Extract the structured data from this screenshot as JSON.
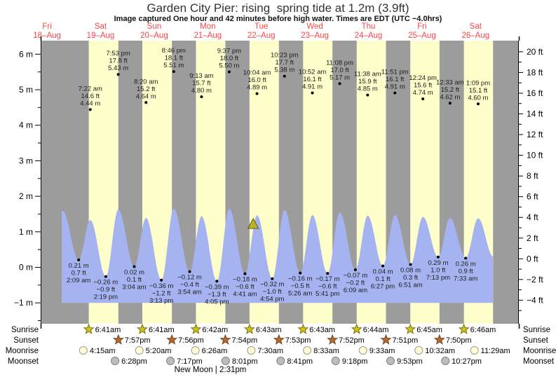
{
  "title": "Garden City Pier: rising  spring tide at 1.2m (3.9ft)",
  "subtitle": "Image captured One hour and 42 minutes before high water. Times are EDT (UTC −4.0hrs)",
  "colors": {
    "night_band": "#9c9c9c",
    "day_band": "#ffffcc",
    "tide_fill": "#a5b4f0",
    "day_label_red": "#f94646",
    "annotation_text": "#1c1c1c",
    "axis_text": "#000000",
    "sunrise_star_fill": "#cbc31f",
    "sunrise_star_stroke": "#7d7200",
    "sunset_star_fill": "#b26a33",
    "sunset_star_stroke": "#77431d",
    "moonrise_circle_fill": "#ffffd2",
    "moonrise_circle_stroke": "#999999",
    "moonset_circle_fill": "#bdbdbd",
    "moonset_circle_stroke": "#808080",
    "capture_triangle_fill": "#b9b32e",
    "capture_triangle_stroke": "#5f5c00"
  },
  "chart_data": {
    "type": "area",
    "title": "Garden City Pier: rising  spring tide at 1.2m (3.9ft)",
    "x_days": [
      {
        "weekday": "Fri",
        "date": "18–Aug"
      },
      {
        "weekday": "Sat",
        "date": "19–Aug"
      },
      {
        "weekday": "Sun",
        "date": "20–Aug"
      },
      {
        "weekday": "Mon",
        "date": "21–Aug"
      },
      {
        "weekday": "Tue",
        "date": "22–Aug"
      },
      {
        "weekday": "Wed",
        "date": "23–Aug"
      },
      {
        "weekday": "Thu",
        "date": "24–Aug"
      },
      {
        "weekday": "Fri",
        "date": "25–Aug"
      },
      {
        "weekday": "Sat",
        "date": "26–Aug"
      }
    ],
    "y_axis_left": {
      "unit": "m",
      "values": [
        6,
        5,
        4,
        3,
        2,
        1,
        0,
        -1
      ],
      "labels": [
        "6 m",
        "5 m",
        "4 m",
        "3 m",
        "2 m",
        "1 m",
        "0 m",
        "−1 m"
      ]
    },
    "y_axis_right": {
      "unit": "ft",
      "values": [
        20,
        18,
        16,
        14,
        12,
        10,
        8,
        6,
        4,
        2,
        0,
        -2,
        -4
      ],
      "labels": [
        "20 ft",
        "18 ft",
        "16 ft",
        "14 ft",
        "12 ft",
        "10 ft",
        "8 ft",
        "6 ft",
        "4 ft",
        "2 ft",
        "0 ft",
        "−2 ft",
        "−4 ft"
      ]
    },
    "high_tides": [
      {
        "day": 1,
        "hour": 7.3667,
        "time": "7:22 am",
        "ft": "14.6 ft",
        "m": "4.44 m",
        "value_m": 4.44
      },
      {
        "day": 1,
        "hour": 19.8833,
        "time": "7:53 pm",
        "ft": "17.8 ft",
        "m": "5.43 m",
        "value_m": 5.43
      },
      {
        "day": 2,
        "hour": 8.3333,
        "time": "8:20 am",
        "ft": "15.2 ft",
        "m": "4.64 m",
        "value_m": 4.64
      },
      {
        "day": 2,
        "hour": 20.7667,
        "time": "8:46 pm",
        "ft": "18.1 ft",
        "m": "5.51 m",
        "value_m": 5.51
      },
      {
        "day": 3,
        "hour": 9.2167,
        "time": "9:13 am",
        "ft": "15.7 ft",
        "m": "4.80 m",
        "value_m": 4.8
      },
      {
        "day": 3,
        "hour": 21.6167,
        "time": "9:37 pm",
        "ft": "18.0 ft",
        "m": "5.50 m",
        "value_m": 5.5
      },
      {
        "day": 4,
        "hour": 10.0667,
        "time": "10:04 am",
        "ft": "16.0 ft",
        "m": "4.89 m",
        "value_m": 4.89
      },
      {
        "day": 4,
        "hour": 22.3833,
        "time": "10:23 pm",
        "ft": "17.7 ft",
        "m": "5.38 m",
        "value_m": 5.38
      },
      {
        "day": 5,
        "hour": 10.8667,
        "time": "10:52 am",
        "ft": "16.1 ft",
        "m": "4.91 m",
        "value_m": 4.91
      },
      {
        "day": 5,
        "hour": 23.1333,
        "time": "11:08 pm",
        "ft": "17.0 ft",
        "m": "5.17 m",
        "value_m": 5.17
      },
      {
        "day": 6,
        "hour": 11.6333,
        "time": "11:38 am",
        "ft": "15.9 ft",
        "m": "4.85 m",
        "value_m": 4.85
      },
      {
        "day": 6,
        "hour": 23.85,
        "time": "11:51 pm",
        "ft": "16.1 ft",
        "m": "4.91 m",
        "value_m": 4.91
      },
      {
        "day": 7,
        "hour": 12.4,
        "time": "12:24 pm",
        "ft": "15.6 ft",
        "m": "4.74 m",
        "value_m": 4.74
      },
      {
        "day": 8,
        "hour": 0.55,
        "time": "12:33 am",
        "ft": "15.2 ft",
        "m": "4.62 m",
        "value_m": 4.62
      },
      {
        "day": 8,
        "hour": 13.15,
        "time": "1:09 pm",
        "ft": "15.1 ft",
        "m": "4.60 m",
        "value_m": 4.6
      }
    ],
    "low_tides": [
      {
        "day": 1,
        "hour": 2.15,
        "time": "2:09 am",
        "ft": "0.7 ft",
        "m": "0.21 m",
        "value_m": 0.21
      },
      {
        "day": 1,
        "hour": 14.3167,
        "time": "2:19 pm",
        "ft": "−0.9 ft",
        "m": "−0.26 m",
        "value_m": -0.26
      },
      {
        "day": 2,
        "hour": 3.0667,
        "time": "3:04 am",
        "ft": "0.1 ft",
        "m": "0.02 m",
        "value_m": 0.02
      },
      {
        "day": 2,
        "hour": 15.2167,
        "time": "3:13 pm",
        "ft": "−1.2 ft",
        "m": "−0.36 m",
        "value_m": -0.36
      },
      {
        "day": 3,
        "hour": 3.9,
        "time": "3:54 am",
        "ft": "−0.4 ft",
        "m": "−0.12 m",
        "value_m": -0.12
      },
      {
        "day": 3,
        "hour": 16.0833,
        "time": "4:05 pm",
        "ft": "−1.3 ft",
        "m": "−0.39 m",
        "value_m": -0.39
      },
      {
        "day": 4,
        "hour": 4.6833,
        "time": "4:41 am",
        "ft": "−0.6 ft",
        "m": "−0.18 m",
        "value_m": -0.18
      },
      {
        "day": 4,
        "hour": 16.9,
        "time": "4:54 pm",
        "ft": "−1.0 ft",
        "m": "−0.32 m",
        "value_m": -0.32
      },
      {
        "day": 5,
        "hour": 5.4333,
        "time": "5:26 am",
        "ft": "−0.5 ft",
        "m": "−0.16 m",
        "value_m": -0.16
      },
      {
        "day": 5,
        "hour": 17.6833,
        "time": "5:41 pm",
        "ft": "−0.6 ft",
        "m": "−0.17 m",
        "value_m": -0.17
      },
      {
        "day": 6,
        "hour": 6.15,
        "time": "6:09 am",
        "ft": "−0.2 ft",
        "m": "−0.07 m",
        "value_m": -0.07
      },
      {
        "day": 6,
        "hour": 18.45,
        "time": "6:27 pm",
        "ft": "0.1 ft",
        "m": "0.04 m",
        "value_m": 0.04
      },
      {
        "day": 7,
        "hour": 6.85,
        "time": "6:51 am",
        "ft": "0.3 ft",
        "m": "0.08 m",
        "value_m": 0.08
      },
      {
        "day": 7,
        "hour": 19.2167,
        "time": "7:13 pm",
        "ft": "1.0 ft",
        "m": "0.29 m",
        "value_m": 0.29
      },
      {
        "day": 8,
        "hour": 7.55,
        "time": "7:33 am",
        "ft": "0.9 ft",
        "m": "0.26 m",
        "value_m": 0.26
      }
    ],
    "capture_marker": {
      "day": 4,
      "hour": 8.3667
    },
    "curve": {
      "start": {
        "day": 0,
        "hour": 18.55
      },
      "end": {
        "day": 8,
        "hour": 19.75
      },
      "pre_peak": {
        "day": 0,
        "hour": 18.9167,
        "value_m": 5.3
      },
      "post_trough": {
        "day": 8,
        "hour": 19.9,
        "value_m": 0.3
      }
    },
    "last_band_end": {
      "day": 8,
      "hour": 19.83
    }
  },
  "astro": {
    "row_labels": [
      "Sunrise",
      "Sunset",
      "Moonrise",
      "Moonset"
    ],
    "sunrise": [
      {
        "day": 1,
        "hour": 6.683,
        "time": "6:41am"
      },
      {
        "day": 2,
        "hour": 6.683,
        "time": "6:41am"
      },
      {
        "day": 3,
        "hour": 6.7,
        "time": "6:42am"
      },
      {
        "day": 4,
        "hour": 6.717,
        "time": "6:43am"
      },
      {
        "day": 5,
        "hour": 6.717,
        "time": "6:43am"
      },
      {
        "day": 6,
        "hour": 6.733,
        "time": "6:44am"
      },
      {
        "day": 7,
        "hour": 6.75,
        "time": "6:45am"
      },
      {
        "day": 8,
        "hour": 6.767,
        "time": "6:46am"
      }
    ],
    "sunset": [
      {
        "day": 1,
        "hour": 19.95,
        "time": "7:57pm"
      },
      {
        "day": 2,
        "hour": 19.933,
        "time": "7:56pm"
      },
      {
        "day": 3,
        "hour": 19.9,
        "time": "7:54pm"
      },
      {
        "day": 4,
        "hour": 19.883,
        "time": "7:53pm"
      },
      {
        "day": 5,
        "hour": 19.867,
        "time": "7:52pm"
      },
      {
        "day": 6,
        "hour": 19.85,
        "time": "7:51pm"
      },
      {
        "day": 7,
        "hour": 19.833,
        "time": "7:50pm"
      }
    ],
    "moonrise": [
      {
        "day": 1,
        "hour": 4.25,
        "time": "4:15am"
      },
      {
        "day": 2,
        "hour": 5.333,
        "time": "5:20am"
      },
      {
        "day": 3,
        "hour": 6.433,
        "time": "6:26am"
      },
      {
        "day": 4,
        "hour": 7.5,
        "time": "7:30am"
      },
      {
        "day": 5,
        "hour": 8.55,
        "time": "8:33am"
      },
      {
        "day": 6,
        "hour": 9.55,
        "time": "9:33am"
      },
      {
        "day": 7,
        "hour": 10.533,
        "time": "10:32am"
      },
      {
        "day": 8,
        "hour": 11.483,
        "time": "11:29am"
      }
    ],
    "moonset": [
      {
        "day": 1,
        "hour": 18.467,
        "time": "6:28pm"
      },
      {
        "day": 2,
        "hour": 19.283,
        "time": "7:17pm"
      },
      {
        "day": 3,
        "hour": 20.017,
        "time": "8:01pm"
      },
      {
        "day": 4,
        "hour": 20.683,
        "time": "8:41pm"
      },
      {
        "day": 5,
        "hour": 21.3,
        "time": "9:18pm"
      },
      {
        "day": 6,
        "hour": 21.883,
        "time": "9:53pm"
      },
      {
        "day": 7,
        "hour": 22.45,
        "time": "10:27pm"
      }
    ],
    "new_moon": "New Moon | 2:31pm"
  }
}
